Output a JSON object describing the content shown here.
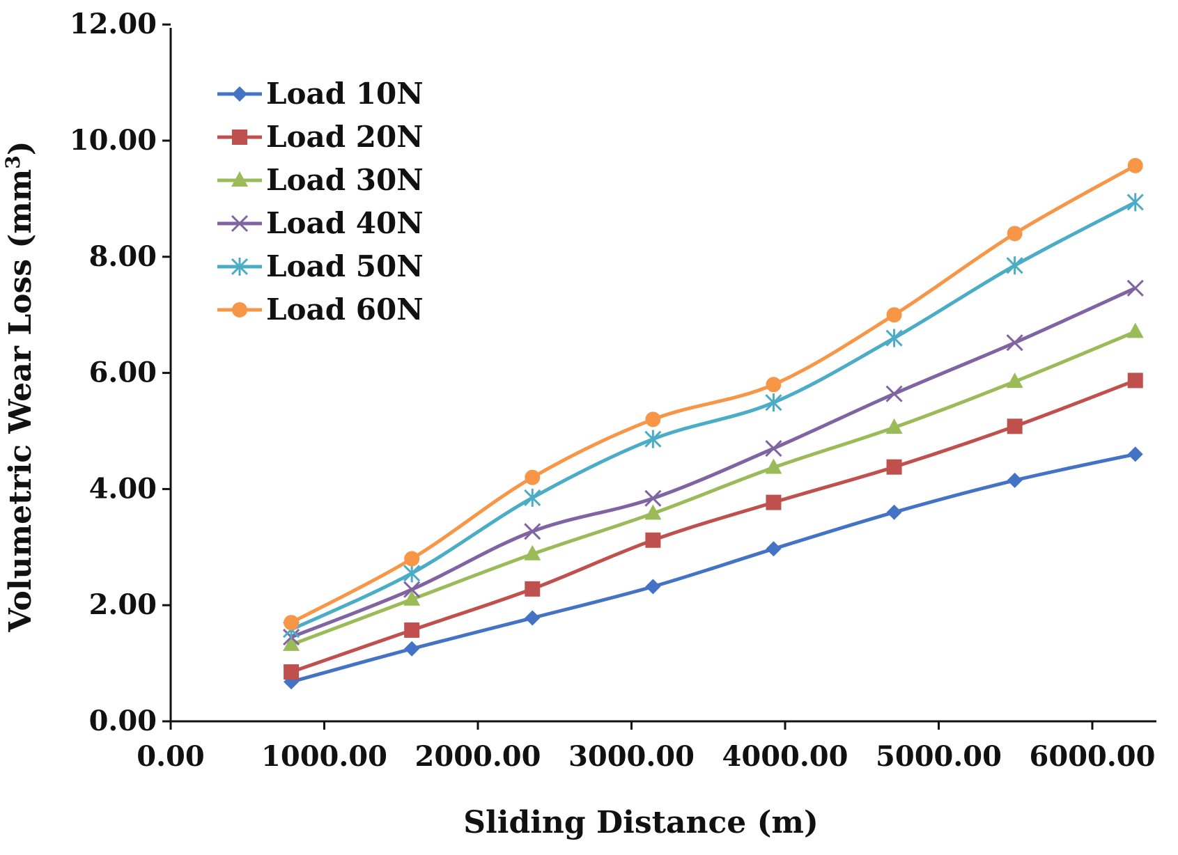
{
  "chart_data": {
    "type": "line",
    "title": "",
    "xlabel": "Sliding Distance (m)",
    "ylabel_main": "Volumetric Wear Loss (mm",
    "ylabel_sup": "3",
    "ylabel_end": ")",
    "xlim": [
      0,
      6400
    ],
    "ylim": [
      0,
      12
    ],
    "xticks": [
      {
        "value": 0,
        "label": "0.00"
      },
      {
        "value": 1000,
        "label": "1000.00"
      },
      {
        "value": 2000,
        "label": "2000.00"
      },
      {
        "value": 3000,
        "label": "3000.00"
      },
      {
        "value": 4000,
        "label": "4000.00"
      },
      {
        "value": 5000,
        "label": "5000.00"
      },
      {
        "value": 6000,
        "label": "6000.00"
      }
    ],
    "yticks": [
      {
        "value": 0,
        "label": "0.00"
      },
      {
        "value": 2,
        "label": "2.00"
      },
      {
        "value": 4,
        "label": "4.00"
      },
      {
        "value": 6,
        "label": "6.00"
      },
      {
        "value": 8,
        "label": "8.00"
      },
      {
        "value": 10,
        "label": "10.00"
      },
      {
        "value": 12,
        "label": "12.00"
      }
    ],
    "grid": false,
    "legend_position": "top-left",
    "x": [
      785,
      1570,
      2355,
      3140,
      3925,
      4710,
      5495,
      6280
    ],
    "series": [
      {
        "name": "Load 10N",
        "color": "#4472c4",
        "marker": "diamond",
        "values": [
          0.68,
          1.25,
          1.78,
          2.32,
          2.97,
          3.6,
          4.15,
          4.6
        ]
      },
      {
        "name": "Load 20N",
        "color": "#c0504d",
        "marker": "square",
        "values": [
          0.85,
          1.57,
          2.28,
          3.12,
          3.77,
          4.38,
          5.08,
          5.87
        ]
      },
      {
        "name": "Load 30N",
        "color": "#9bbb59",
        "marker": "triangle",
        "values": [
          1.32,
          2.1,
          2.88,
          3.58,
          4.37,
          5.06,
          5.85,
          6.71
        ]
      },
      {
        "name": "Load 40N",
        "color": "#8064a2",
        "marker": "x",
        "values": [
          1.45,
          2.27,
          3.27,
          3.84,
          4.7,
          5.64,
          6.52,
          7.46
        ]
      },
      {
        "name": "Load 50N",
        "color": "#4bacc6",
        "marker": "star",
        "values": [
          1.58,
          2.55,
          3.85,
          4.86,
          5.49,
          6.6,
          7.85,
          8.94
        ]
      },
      {
        "name": "Load 60N",
        "color": "#f79646",
        "marker": "circle",
        "values": [
          1.7,
          2.8,
          4.2,
          5.2,
          5.8,
          7.0,
          8.4,
          9.57
        ]
      }
    ]
  }
}
